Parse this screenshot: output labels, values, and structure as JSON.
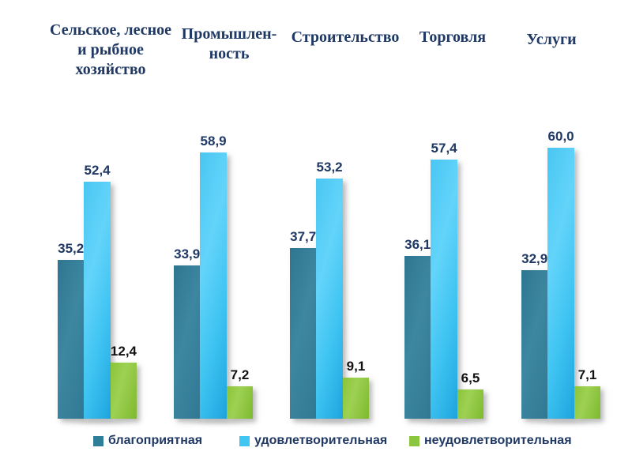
{
  "chart_data": {
    "type": "bar",
    "title": "",
    "categories": [
      "Сельское, лесное и рыбное хозяйство",
      "Промышленность",
      "Строительство",
      "Торговля",
      "Услуги"
    ],
    "category_display_lines": [
      [
        "Сельское, лесное",
        "и рыбное",
        "хозяйство"
      ],
      [
        "Промышлен-",
        "ность"
      ],
      [
        "Строительство"
      ],
      [
        "Торговля"
      ],
      [
        "Услуги"
      ]
    ],
    "series": [
      {
        "name": "благоприятная",
        "values": [
          35.2,
          33.9,
          37.7,
          36.1,
          32.9
        ],
        "color": "#2e7d99",
        "label_color": "#1f3864"
      },
      {
        "name": "удовлетворительная",
        "values": [
          52.4,
          58.9,
          53.2,
          57.4,
          60.0
        ],
        "color": "#3fc6f3",
        "label_color": "#1f3864"
      },
      {
        "name": "неудовлетворительная",
        "values": [
          12.4,
          7.2,
          9.1,
          6.5,
          7.1
        ],
        "color": "#8cc63e",
        "label_color": "#111111"
      }
    ],
    "ylim": [
      0,
      65
    ],
    "grid": false,
    "axes_visible": false,
    "value_labels": "above_bars",
    "decimal_separator": ",",
    "legend_position": "bottom"
  },
  "colors": {
    "background": "#ffffff",
    "header_text": "#1f3864",
    "value_text": "#1f3864",
    "legend_text": "#1f3864"
  }
}
